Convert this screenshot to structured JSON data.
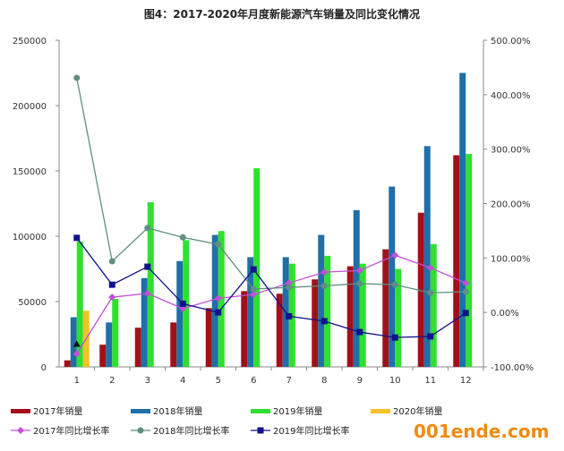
{
  "chart_data": {
    "type": "bar+line",
    "title": "图4：2017-2020年月度新能源汽车销量及同比变化情况",
    "categories": [
      "1",
      "2",
      "3",
      "4",
      "5",
      "6",
      "7",
      "8",
      "9",
      "10",
      "11",
      "12"
    ],
    "ylim_left": [
      0,
      250000
    ],
    "yticks_left": [
      "0",
      "50000",
      "100000",
      "150000",
      "200000",
      "250000"
    ],
    "ylim_right": [
      -100,
      500
    ],
    "yticks_right": [
      "-100.00%",
      "0.00%",
      "100.00%",
      "200.00%",
      "300.00%",
      "400.00%",
      "500.00%"
    ],
    "grid": false,
    "legend_position": "bottom",
    "bar_series": [
      {
        "name": "2017年销量",
        "color": "#a3101a",
        "values": [
          5000,
          17000,
          30000,
          34000,
          45000,
          58000,
          56000,
          67000,
          77000,
          90000,
          118000,
          162000
        ]
      },
      {
        "name": "2018年销量",
        "color": "#1f6fa8",
        "values": [
          38000,
          34000,
          68000,
          81000,
          101000,
          84000,
          84000,
          101000,
          120000,
          138000,
          169000,
          225000
        ]
      },
      {
        "name": "2019年销量",
        "color": "#2fe02f",
        "values": [
          96000,
          52000,
          126000,
          97000,
          104000,
          152000,
          79000,
          85000,
          79000,
          75000,
          94000,
          163000
        ]
      },
      {
        "name": "2020年销量",
        "color": "#f2c22a",
        "values": [
          43000,
          null,
          null,
          null,
          null,
          null,
          null,
          null,
          null,
          null,
          null,
          null
        ]
      }
    ],
    "line_series": [
      {
        "name": "2017年同比增长率",
        "color": "#c34fd6",
        "marker": "diamond",
        "values": [
          -76,
          28,
          35,
          7,
          26,
          33,
          54,
          74,
          77,
          105,
          82,
          54
        ]
      },
      {
        "name": "2018年同比增长率",
        "color": "#5f8f80",
        "marker": "circle",
        "values": [
          431,
          94,
          155,
          138,
          125,
          43,
          46,
          49,
          53,
          51,
          36,
          38
        ]
      },
      {
        "name": "2019年同比增长率",
        "color": "#12128a",
        "marker": "square",
        "values": [
          137,
          51,
          84,
          16,
          0,
          79,
          -7,
          -16,
          -36,
          -46,
          -44,
          -1
        ]
      },
      {
        "color": "#111111",
        "marker": "triangle",
        "values": [
          -58,
          null,
          null,
          null,
          null,
          null,
          null,
          null,
          null,
          null,
          null,
          null
        ]
      }
    ]
  },
  "watermark": "001ende.com"
}
